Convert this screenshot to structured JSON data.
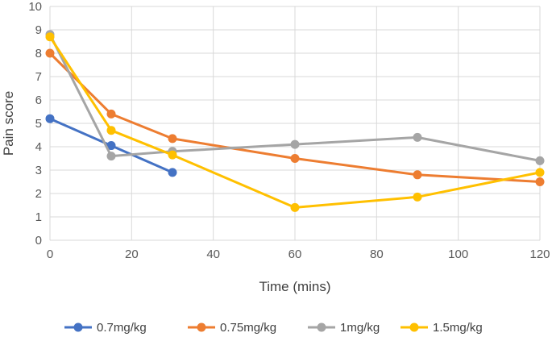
{
  "chart_data": {
    "type": "line",
    "title": "",
    "xlabel": "Time (mins)",
    "ylabel": "Pain score",
    "xlim": [
      0,
      120
    ],
    "ylim": [
      0,
      10
    ],
    "xticks": [
      "0",
      "20",
      "40",
      "60",
      "80",
      "100",
      "120"
    ],
    "yticks": [
      "0",
      "1",
      "2",
      "3",
      "4",
      "5",
      "6",
      "7",
      "8",
      "9",
      "10"
    ],
    "grid": true,
    "legend_position": "bottom",
    "series": [
      {
        "name": "0.7mg/kg",
        "color": "#4472C4",
        "x": [
          0,
          15,
          30
        ],
        "y": [
          5.2,
          4.05,
          2.9
        ]
      },
      {
        "name": "0.75mg/kg",
        "color": "#ED7D31",
        "x": [
          0,
          15,
          30,
          60,
          90,
          120
        ],
        "y": [
          8.0,
          5.4,
          4.35,
          3.5,
          2.8,
          2.5
        ]
      },
      {
        "name": "1mg/kg",
        "color": "#A5A5A5",
        "x": [
          0,
          15,
          30,
          60,
          90,
          120
        ],
        "y": [
          8.8,
          3.6,
          3.8,
          4.1,
          4.4,
          3.4
        ]
      },
      {
        "name": "1.5mg/kg",
        "color": "#FFC000",
        "x": [
          0,
          15,
          30,
          60,
          90,
          120
        ],
        "y": [
          8.7,
          4.7,
          3.65,
          1.4,
          1.85,
          2.9
        ]
      }
    ]
  }
}
